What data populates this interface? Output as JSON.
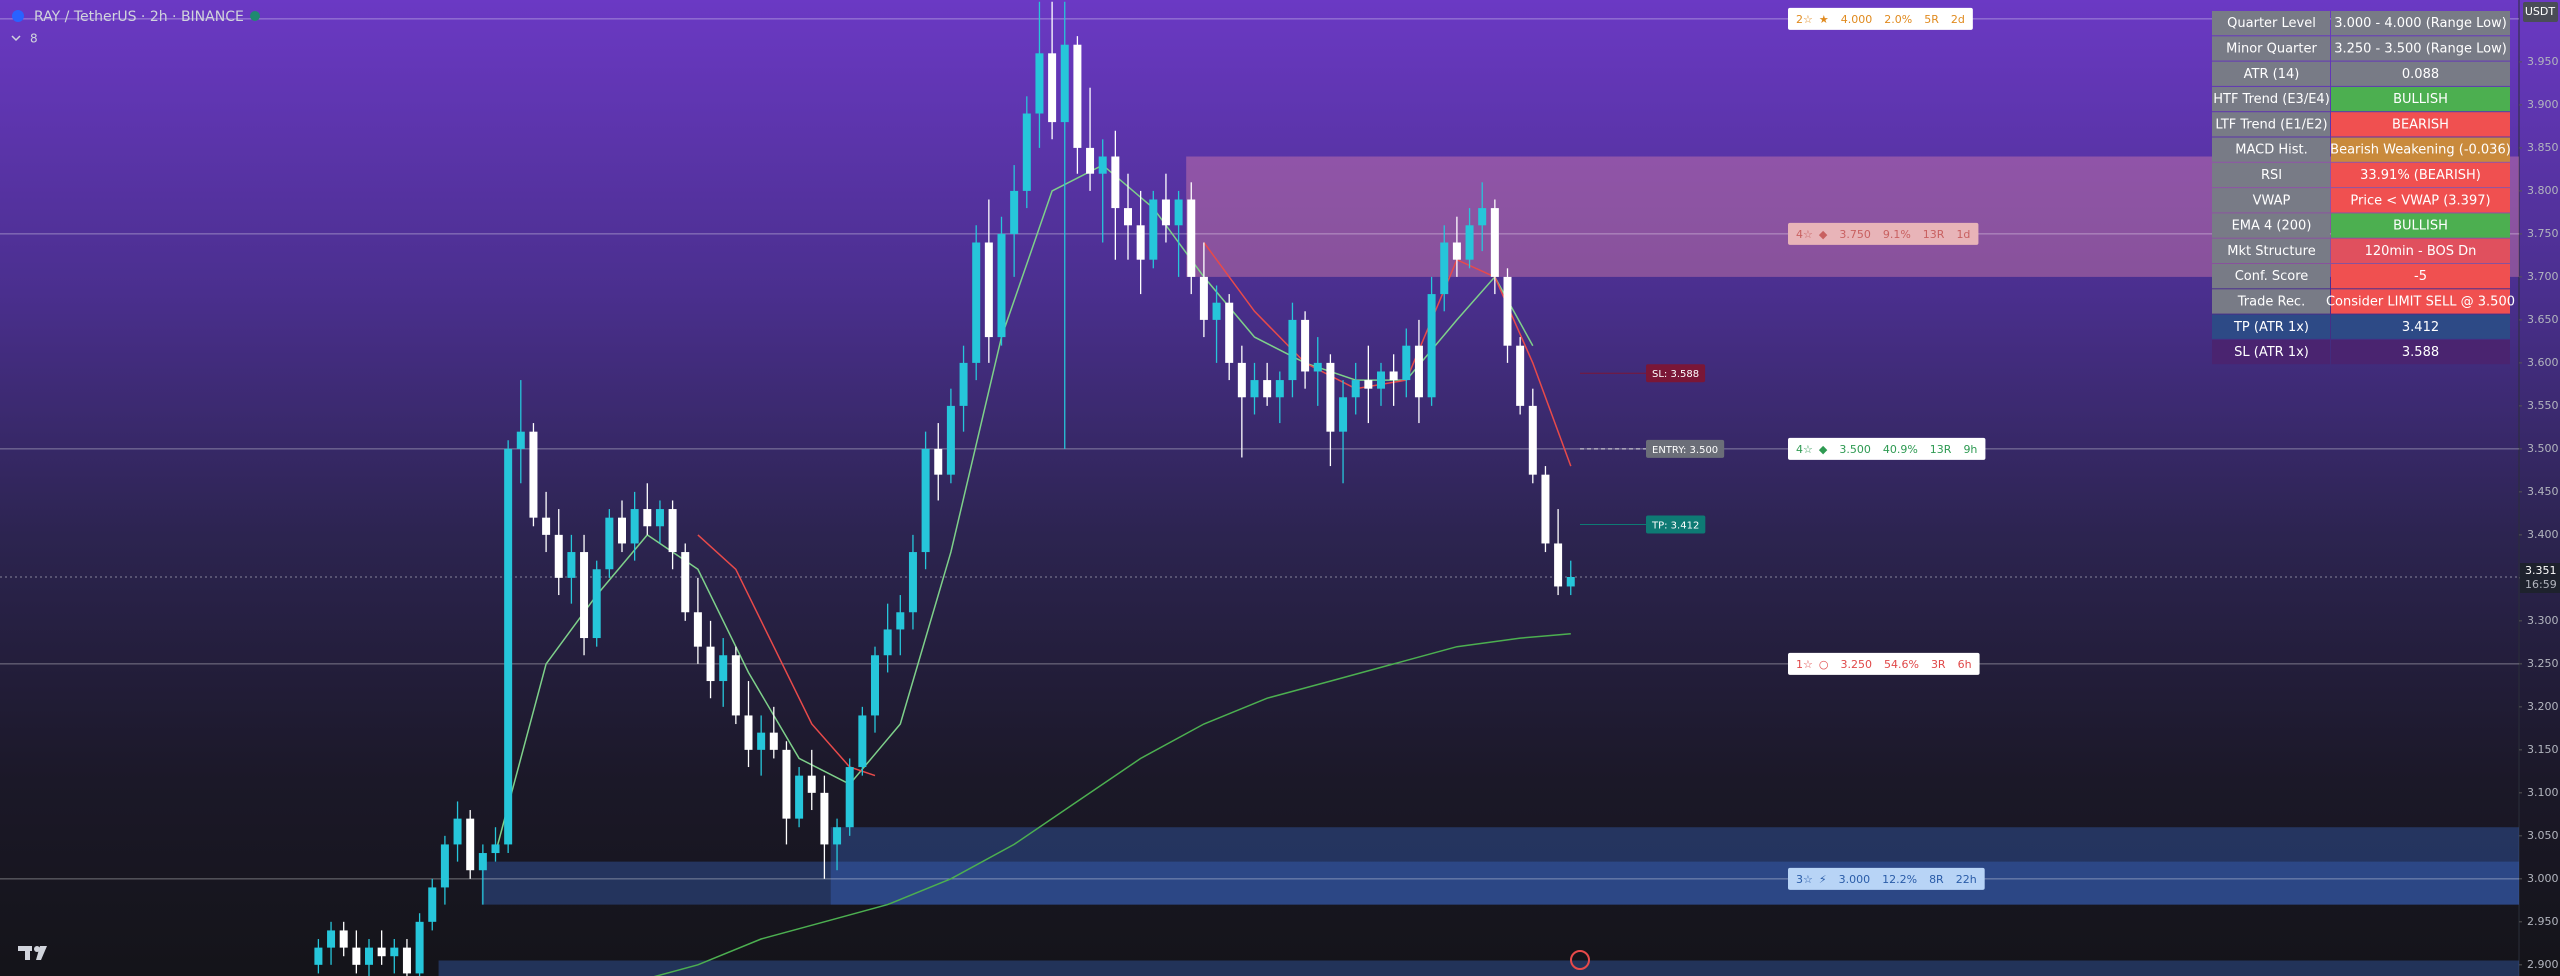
{
  "header": {
    "symbol": "RAY / TetherUS · 2h · BINANCE",
    "indicator_count": "8"
  },
  "chart_data": {
    "type": "candlestick",
    "up_color": "#26c6da",
    "down_color": "#ffffff",
    "ylim": [
      2.887,
      4.022
    ],
    "yticks": [
      {
        "value": 2.9,
        "label": "2.900"
      },
      {
        "value": 2.95,
        "label": "2.950"
      },
      {
        "value": 3.0,
        "label": "3.000"
      },
      {
        "value": 3.05,
        "label": "3.050"
      },
      {
        "value": 3.1,
        "label": "3.100"
      },
      {
        "value": 3.15,
        "label": "3.150"
      },
      {
        "value": 3.2,
        "label": "3.200"
      },
      {
        "value": 3.25,
        "label": "3.250"
      },
      {
        "value": 3.3,
        "label": "3.300"
      },
      {
        "value": 3.35,
        "label": "3.350"
      },
      {
        "value": 3.4,
        "label": "3.400"
      },
      {
        "value": 3.45,
        "label": "3.450"
      },
      {
        "value": 3.5,
        "label": "3.500"
      },
      {
        "value": 3.55,
        "label": "3.550"
      },
      {
        "value": 3.6,
        "label": "3.600"
      },
      {
        "value": 3.65,
        "label": "3.650"
      },
      {
        "value": 3.7,
        "label": "3.700"
      },
      {
        "value": 3.75,
        "label": "3.750"
      },
      {
        "value": 3.8,
        "label": "3.800"
      },
      {
        "value": 3.85,
        "label": "3.850"
      },
      {
        "value": 3.9,
        "label": "3.900"
      },
      {
        "value": 3.95,
        "label": "3.950"
      }
    ],
    "currency": "USDT",
    "last_price": {
      "value": 3.351,
      "label": "3.351",
      "countdown": "16:59"
    },
    "candles": [
      [
        2.9,
        2.93,
        2.89,
        2.92
      ],
      [
        2.92,
        2.95,
        2.9,
        2.94
      ],
      [
        2.94,
        2.95,
        2.91,
        2.92
      ],
      [
        2.92,
        2.94,
        2.89,
        2.9
      ],
      [
        2.9,
        2.93,
        2.88,
        2.92
      ],
      [
        2.92,
        2.94,
        2.9,
        2.91
      ],
      [
        2.91,
        2.93,
        2.89,
        2.92
      ],
      [
        2.92,
        2.93,
        2.88,
        2.89
      ],
      [
        2.89,
        2.96,
        2.88,
        2.95
      ],
      [
        2.95,
        3.0,
        2.94,
        2.99
      ],
      [
        2.99,
        3.05,
        2.97,
        3.04
      ],
      [
        3.04,
        3.09,
        3.02,
        3.07
      ],
      [
        3.07,
        3.08,
        3.0,
        3.01
      ],
      [
        3.01,
        3.04,
        2.97,
        3.03
      ],
      [
        3.03,
        3.06,
        3.02,
        3.04
      ],
      [
        3.04,
        3.51,
        3.03,
        3.5
      ],
      [
        3.5,
        3.58,
        3.46,
        3.52
      ],
      [
        3.52,
        3.53,
        3.41,
        3.42
      ],
      [
        3.42,
        3.45,
        3.38,
        3.4
      ],
      [
        3.4,
        3.43,
        3.33,
        3.35
      ],
      [
        3.35,
        3.4,
        3.32,
        3.38
      ],
      [
        3.38,
        3.4,
        3.26,
        3.28
      ],
      [
        3.28,
        3.37,
        3.27,
        3.36
      ],
      [
        3.36,
        3.43,
        3.35,
        3.42
      ],
      [
        3.42,
        3.44,
        3.38,
        3.39
      ],
      [
        3.39,
        3.45,
        3.37,
        3.43
      ],
      [
        3.43,
        3.46,
        3.4,
        3.41
      ],
      [
        3.41,
        3.44,
        3.39,
        3.43
      ],
      [
        3.43,
        3.44,
        3.36,
        3.38
      ],
      [
        3.38,
        3.39,
        3.3,
        3.31
      ],
      [
        3.31,
        3.35,
        3.25,
        3.27
      ],
      [
        3.27,
        3.3,
        3.21,
        3.23
      ],
      [
        3.23,
        3.28,
        3.2,
        3.26
      ],
      [
        3.26,
        3.27,
        3.18,
        3.19
      ],
      [
        3.19,
        3.23,
        3.13,
        3.15
      ],
      [
        3.15,
        3.19,
        3.12,
        3.17
      ],
      [
        3.17,
        3.2,
        3.14,
        3.15
      ],
      [
        3.15,
        3.16,
        3.04,
        3.07
      ],
      [
        3.07,
        3.13,
        3.06,
        3.12
      ],
      [
        3.12,
        3.15,
        3.08,
        3.1
      ],
      [
        3.1,
        3.12,
        3.0,
        3.04
      ],
      [
        3.04,
        3.07,
        3.01,
        3.06
      ],
      [
        3.06,
        3.14,
        3.05,
        3.13
      ],
      [
        3.13,
        3.2,
        3.12,
        3.19
      ],
      [
        3.19,
        3.27,
        3.17,
        3.26
      ],
      [
        3.26,
        3.32,
        3.24,
        3.29
      ],
      [
        3.29,
        3.33,
        3.26,
        3.31
      ],
      [
        3.31,
        3.4,
        3.29,
        3.38
      ],
      [
        3.38,
        3.52,
        3.36,
        3.5
      ],
      [
        3.5,
        3.53,
        3.44,
        3.47
      ],
      [
        3.47,
        3.57,
        3.46,
        3.55
      ],
      [
        3.55,
        3.62,
        3.52,
        3.6
      ],
      [
        3.6,
        3.76,
        3.58,
        3.74
      ],
      [
        3.74,
        3.79,
        3.6,
        3.63
      ],
      [
        3.63,
        3.77,
        3.62,
        3.75
      ],
      [
        3.75,
        3.83,
        3.7,
        3.8
      ],
      [
        3.8,
        3.91,
        3.78,
        3.89
      ],
      [
        3.89,
        4.02,
        3.85,
        3.96
      ],
      [
        3.96,
        4.02,
        3.86,
        3.88
      ],
      [
        3.88,
        4.02,
        3.5,
        3.97
      ],
      [
        3.97,
        3.98,
        3.82,
        3.85
      ],
      [
        3.85,
        3.92,
        3.8,
        3.82
      ],
      [
        3.82,
        3.86,
        3.74,
        3.84
      ],
      [
        3.84,
        3.87,
        3.72,
        3.78
      ],
      [
        3.78,
        3.82,
        3.72,
        3.76
      ],
      [
        3.76,
        3.8,
        3.68,
        3.72
      ],
      [
        3.72,
        3.8,
        3.71,
        3.79
      ],
      [
        3.79,
        3.82,
        3.74,
        3.76
      ],
      [
        3.76,
        3.8,
        3.7,
        3.79
      ],
      [
        3.79,
        3.81,
        3.68,
        3.7
      ],
      [
        3.7,
        3.74,
        3.63,
        3.65
      ],
      [
        3.65,
        3.69,
        3.6,
        3.67
      ],
      [
        3.67,
        3.68,
        3.58,
        3.6
      ],
      [
        3.6,
        3.62,
        3.49,
        3.56
      ],
      [
        3.56,
        3.6,
        3.54,
        3.58
      ],
      [
        3.58,
        3.6,
        3.55,
        3.56
      ],
      [
        3.56,
        3.59,
        3.53,
        3.58
      ],
      [
        3.58,
        3.67,
        3.56,
        3.65
      ],
      [
        3.65,
        3.66,
        3.57,
        3.59
      ],
      [
        3.59,
        3.63,
        3.55,
        3.6
      ],
      [
        3.6,
        3.61,
        3.48,
        3.52
      ],
      [
        3.52,
        3.58,
        3.46,
        3.56
      ],
      [
        3.56,
        3.6,
        3.54,
        3.58
      ],
      [
        3.58,
        3.62,
        3.53,
        3.57
      ],
      [
        3.57,
        3.6,
        3.55,
        3.59
      ],
      [
        3.59,
        3.61,
        3.55,
        3.58
      ],
      [
        3.58,
        3.64,
        3.56,
        3.62
      ],
      [
        3.62,
        3.65,
        3.53,
        3.56
      ],
      [
        3.56,
        3.7,
        3.55,
        3.68
      ],
      [
        3.68,
        3.76,
        3.66,
        3.74
      ],
      [
        3.74,
        3.77,
        3.7,
        3.72
      ],
      [
        3.72,
        3.78,
        3.71,
        3.76
      ],
      [
        3.76,
        3.81,
        3.73,
        3.78
      ],
      [
        3.78,
        3.79,
        3.68,
        3.7
      ],
      [
        3.7,
        3.71,
        3.6,
        3.62
      ],
      [
        3.62,
        3.63,
        3.54,
        3.55
      ],
      [
        3.55,
        3.57,
        3.46,
        3.47
      ],
      [
        3.47,
        3.48,
        3.38,
        3.39
      ],
      [
        3.39,
        3.43,
        3.33,
        3.34
      ],
      [
        3.34,
        3.37,
        3.33,
        3.351
      ]
    ],
    "lines": [
      {
        "color": "#4caf50",
        "x": [
          25,
          30,
          35,
          40,
          45,
          50,
          55,
          60,
          65,
          70,
          75,
          80,
          85,
          90,
          95,
          99
        ],
        "values": [
          2.88,
          2.9,
          2.93,
          2.95,
          2.97,
          3.0,
          3.04,
          3.09,
          3.14,
          3.18,
          3.21,
          3.23,
          3.25,
          3.27,
          3.28,
          3.285
        ]
      },
      {
        "color": "#7ed08a",
        "x": [
          14,
          18,
          22,
          26,
          30,
          34,
          38,
          42,
          46,
          50,
          54,
          58,
          62,
          66,
          70,
          74,
          78,
          82,
          86,
          90,
          93,
          96
        ],
        "values": [
          3.03,
          3.25,
          3.33,
          3.4,
          3.36,
          3.24,
          3.14,
          3.11,
          3.18,
          3.38,
          3.63,
          3.8,
          3.83,
          3.78,
          3.7,
          3.63,
          3.6,
          3.58,
          3.58,
          3.65,
          3.7,
          3.62
        ]
      },
      {
        "color": "#e84a4a",
        "x": [
          30,
          33,
          36,
          39,
          42,
          44,
          45,
          70,
          74,
          78,
          82,
          86,
          90,
          93,
          96,
          99
        ],
        "values": [
          3.4,
          3.36,
          3.27,
          3.18,
          3.13,
          3.12,
          null,
          3.74,
          3.66,
          3.6,
          3.57,
          3.58,
          3.72,
          3.7,
          3.6,
          3.48
        ]
      }
    ],
    "zones": [
      {
        "from": 3.7,
        "to": 3.84,
        "start": 68.6,
        "color": "rgba(235,140,170,0.38)"
      },
      {
        "from": 2.97,
        "to": 3.06,
        "start": 40.5,
        "color": "rgba(60,110,210,0.35)"
      },
      {
        "from": 2.97,
        "to": 3.02,
        "start": 12.9,
        "color": "rgba(60,110,210,0.35)"
      },
      {
        "from": 2.88,
        "to": 2.905,
        "start": 9.5,
        "color": "rgba(60,110,210,0.35)"
      }
    ],
    "levels": [
      {
        "tier": "2☆",
        "icon": "★",
        "value": 4.0,
        "value_label": "4.000",
        "pct": "2.0%",
        "r": "5R",
        "age": "2d",
        "bg": "#ffffff",
        "text_color": "#e08a1e"
      },
      {
        "tier": "4☆",
        "icon": "◆",
        "value": 3.75,
        "value_label": "3.750",
        "pct": "9.1%",
        "r": "13R",
        "age": "1d",
        "bg": "#e8b4b8",
        "text_color": "#c86060"
      },
      {
        "tier": "4☆",
        "icon": "◆",
        "value": 3.5,
        "value_label": "3.500",
        "pct": "40.9%",
        "r": "13R",
        "age": "9h",
        "bg": "#ffffff",
        "text_color": "#2e9a52"
      },
      {
        "tier": "1☆",
        "icon": "○",
        "value": 3.25,
        "value_label": "3.250",
        "pct": "54.6%",
        "r": "3R",
        "age": "6h",
        "bg": "#ffffff",
        "text_color": "#e04848"
      },
      {
        "tier": "3☆",
        "icon": "⚡",
        "value": 3.0,
        "value_label": "3.000",
        "pct": "12.2%",
        "r": "8R",
        "age": "22h",
        "bg": "#b8d4f6",
        "text_color": "#2a5ca8"
      }
    ],
    "trade_markers": [
      {
        "label": "SL: 3.588",
        "value": 3.588,
        "color": "#7a1636"
      },
      {
        "label": "ENTRY: 3.500",
        "value": 3.5,
        "color": "#6b6e78"
      },
      {
        "label": "TP: 3.412",
        "value": 3.412,
        "color": "#0e7a74"
      }
    ]
  },
  "table": {
    "rows": [
      {
        "label": "Quarter Level",
        "value": "3.000 - 4.000 (Range Low)",
        "color": "#787b86"
      },
      {
        "label": "Minor Quarter",
        "value": "3.250 - 3.500 (Range Low)",
        "color": "#787b86"
      },
      {
        "label": "ATR (14)",
        "value": "0.088",
        "color": "#787b86"
      },
      {
        "label": "HTF Trend (E3/E4)",
        "value": "BULLISH",
        "color": "#4caf50"
      },
      {
        "label": "LTF Trend (E1/E2)",
        "value": "BEARISH",
        "color": "#f05050"
      },
      {
        "label": "MACD Hist.",
        "value": "Bearish Weakening (-0.036)",
        "color": "#c98a3c"
      },
      {
        "label": "RSI",
        "value": "33.91% (BEARISH)",
        "color": "#f05050"
      },
      {
        "label": "VWAP",
        "value": "Price < VWAP (3.397)",
        "color": "#f05050"
      },
      {
        "label": "EMA 4 (200)",
        "value": "BULLISH",
        "color": "#4caf50"
      },
      {
        "label": "Mkt Structure",
        "value": "120min - BOS Dn",
        "color": "#e0505e"
      },
      {
        "label": "Conf. Score",
        "value": "-5",
        "color": "#f05050"
      },
      {
        "label": "Trade Rec.",
        "value": "Consider LIMIT SELL @ 3.500",
        "color": "#f05050"
      },
      {
        "label": "TP (ATR 1x)",
        "value": "3.412",
        "color": "#2d4a86",
        "label_color": "#2d4a86"
      },
      {
        "label": "SL (ATR 1x)",
        "value": "3.588",
        "color": "#4a2470",
        "label_color": "#4a2470"
      }
    ]
  }
}
